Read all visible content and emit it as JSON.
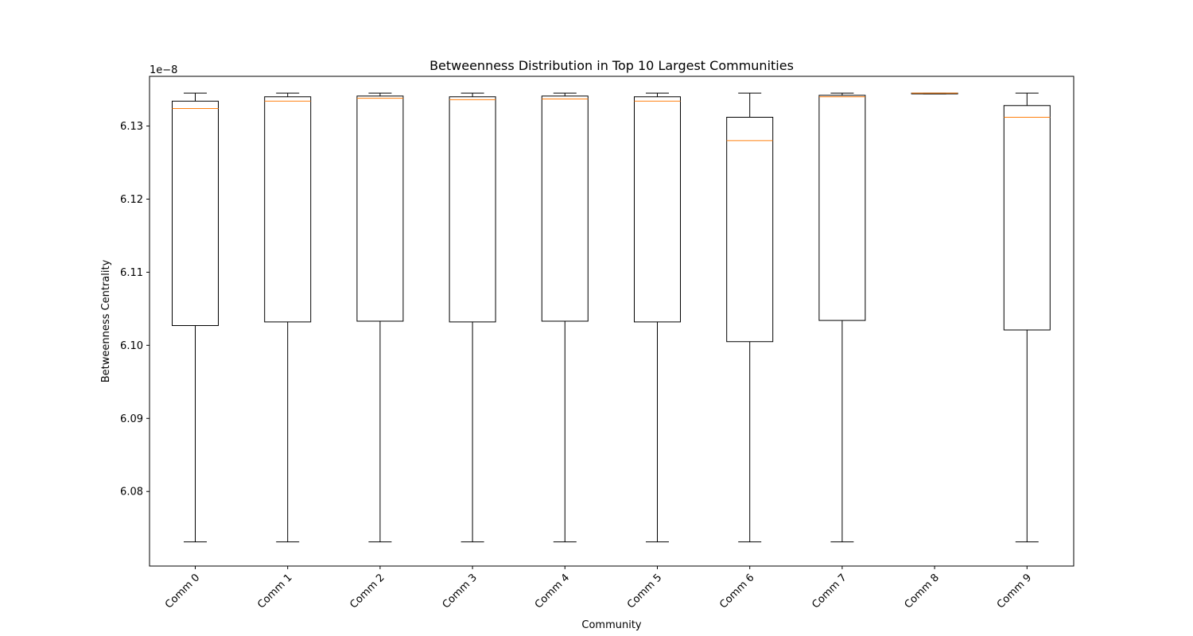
{
  "chart_data": {
    "type": "box",
    "title": "Betweenness Distribution in Top 10 Largest Communities",
    "xlabel": "Community",
    "ylabel": "Betweenness Centrality",
    "y_offset_label": "1e−8",
    "ylim": [
      6.0698,
      6.1368
    ],
    "yticks": [
      6.08,
      6.09,
      6.1,
      6.11,
      6.12,
      6.13
    ],
    "ytick_labels": [
      "6.08",
      "6.09",
      "6.10",
      "6.11",
      "6.12",
      "6.13"
    ],
    "grid": false,
    "colors": {
      "box": "#000000",
      "median": "#ff7f0e"
    },
    "categories": [
      "Comm 0",
      "Comm 1",
      "Comm 2",
      "Comm 3",
      "Comm 4",
      "Comm 5",
      "Comm 6",
      "Comm 7",
      "Comm 8",
      "Comm 9"
    ],
    "boxes": [
      {
        "whisker_low": 6.0731,
        "q1": 6.1027,
        "median": 6.1324,
        "q3": 6.1334,
        "whisker_high": 6.1345
      },
      {
        "whisker_low": 6.0731,
        "q1": 6.1032,
        "median": 6.1334,
        "q3": 6.134,
        "whisker_high": 6.1345
      },
      {
        "whisker_low": 6.0731,
        "q1": 6.1033,
        "median": 6.1338,
        "q3": 6.1341,
        "whisker_high": 6.1345
      },
      {
        "whisker_low": 6.0731,
        "q1": 6.1032,
        "median": 6.1336,
        "q3": 6.134,
        "whisker_high": 6.1345
      },
      {
        "whisker_low": 6.0731,
        "q1": 6.1033,
        "median": 6.1337,
        "q3": 6.1341,
        "whisker_high": 6.1345
      },
      {
        "whisker_low": 6.0731,
        "q1": 6.1032,
        "median": 6.1334,
        "q3": 6.134,
        "whisker_high": 6.1345
      },
      {
        "whisker_low": 6.0731,
        "q1": 6.1005,
        "median": 6.128,
        "q3": 6.1312,
        "whisker_high": 6.1345
      },
      {
        "whisker_low": 6.0731,
        "q1": 6.1034,
        "median": 6.134,
        "q3": 6.1342,
        "whisker_high": 6.1345
      },
      {
        "whisker_low": 6.1344,
        "q1": 6.1344,
        "median": 6.1345,
        "q3": 6.1345,
        "whisker_high": 6.1345
      },
      {
        "whisker_low": 6.0731,
        "q1": 6.1021,
        "median": 6.1312,
        "q3": 6.1328,
        "whisker_high": 6.1345
      }
    ]
  }
}
